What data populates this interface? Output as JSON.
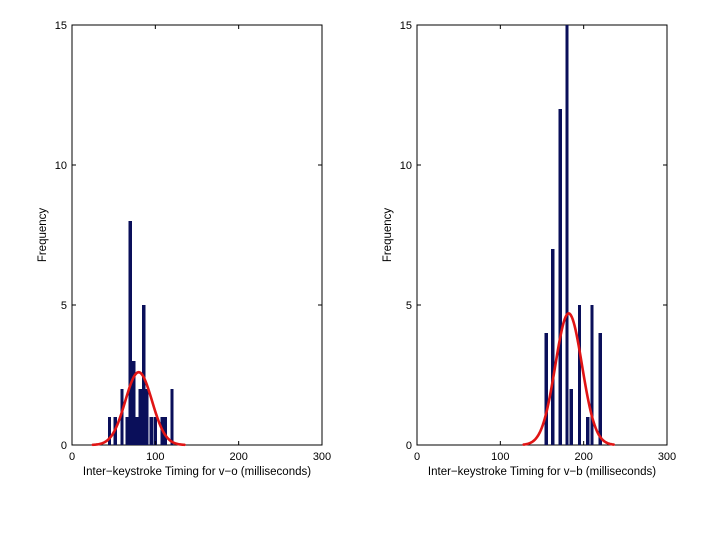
{
  "chart_data": [
    {
      "type": "bar",
      "title": "",
      "xlabel": "Inter−keystroke Timing for v−o (milliseconds)",
      "ylabel": "Frequency",
      "xlim": [
        0,
        300
      ],
      "ylim": [
        0,
        15
      ],
      "xticks": [
        0,
        100,
        200,
        300
      ],
      "yticks": [
        0,
        5,
        10,
        15
      ],
      "xtick_labels": [
        "0",
        "100",
        "200",
        "300"
      ],
      "ytick_labels": [
        "0",
        "5",
        "10",
        "15"
      ],
      "bar_width": 4,
      "bar_color": "#0a0f5a",
      "bars": [
        {
          "x": 45,
          "y": 1
        },
        {
          "x": 52,
          "y": 1
        },
        {
          "x": 60,
          "y": 2
        },
        {
          "x": 66,
          "y": 1
        },
        {
          "x": 70,
          "y": 8
        },
        {
          "x": 74,
          "y": 3
        },
        {
          "x": 78,
          "y": 1
        },
        {
          "x": 82,
          "y": 2
        },
        {
          "x": 86,
          "y": 5
        },
        {
          "x": 90,
          "y": 2
        },
        {
          "x": 95,
          "y": 1
        },
        {
          "x": 100,
          "y": 1
        },
        {
          "x": 108,
          "y": 1
        },
        {
          "x": 112,
          "y": 1
        },
        {
          "x": 120,
          "y": 2
        }
      ],
      "fit": {
        "type": "normal",
        "mean": 80,
        "std": 16,
        "peak": 2.6,
        "x_range": [
          25,
          135
        ],
        "color": "#e01515"
      }
    },
    {
      "type": "bar",
      "title": "",
      "xlabel": "Inter−keystroke Timing for v−b (milliseconds)",
      "ylabel": "Frequency",
      "xlim": [
        0,
        300
      ],
      "ylim": [
        0,
        15
      ],
      "xticks": [
        0,
        100,
        200,
        300
      ],
      "yticks": [
        0,
        5,
        10,
        15
      ],
      "xtick_labels": [
        "0",
        "100",
        "200",
        "300"
      ],
      "ytick_labels": [
        "0",
        "5",
        "10",
        "15"
      ],
      "bar_width": 4,
      "bar_color": "#0a0f5a",
      "bars": [
        {
          "x": 155,
          "y": 4
        },
        {
          "x": 163,
          "y": 7
        },
        {
          "x": 172,
          "y": 12
        },
        {
          "x": 180,
          "y": 15
        },
        {
          "x": 185,
          "y": 2
        },
        {
          "x": 195,
          "y": 5
        },
        {
          "x": 205,
          "y": 1
        },
        {
          "x": 210,
          "y": 5
        },
        {
          "x": 220,
          "y": 4
        }
      ],
      "fit": {
        "type": "normal",
        "mean": 182,
        "std": 16,
        "peak": 4.7,
        "x_range": [
          128,
          236
        ],
        "color": "#e01515"
      }
    }
  ]
}
